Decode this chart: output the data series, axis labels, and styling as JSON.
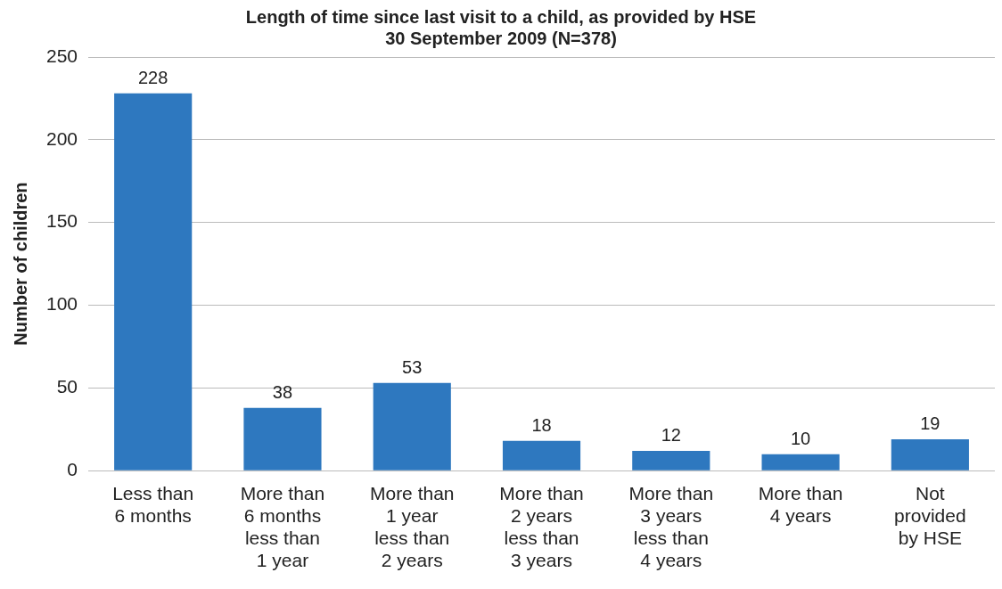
{
  "chart_data": {
    "type": "bar",
    "title": "Length of time since last visit to a child, as provided by HSE",
    "subtitle": "30 September 2009 (N=378)",
    "ylabel": "Number of children",
    "categories": [
      "Less than 6 months",
      "More than 6 months less than 1 year",
      "More than 1 year less than 2 years",
      "More than 2 years less than 3 years",
      "More than 3 years less than 4 years",
      "More than 4 years",
      "Not provided by HSE"
    ],
    "values": [
      228,
      38,
      53,
      18,
      12,
      10,
      19
    ],
    "color": "#2e78bf",
    "ylim": [
      0,
      250
    ],
    "yticks": [
      0,
      50,
      100,
      150,
      200,
      250
    ],
    "grid": "y",
    "legend": false,
    "data_labels": true
  }
}
